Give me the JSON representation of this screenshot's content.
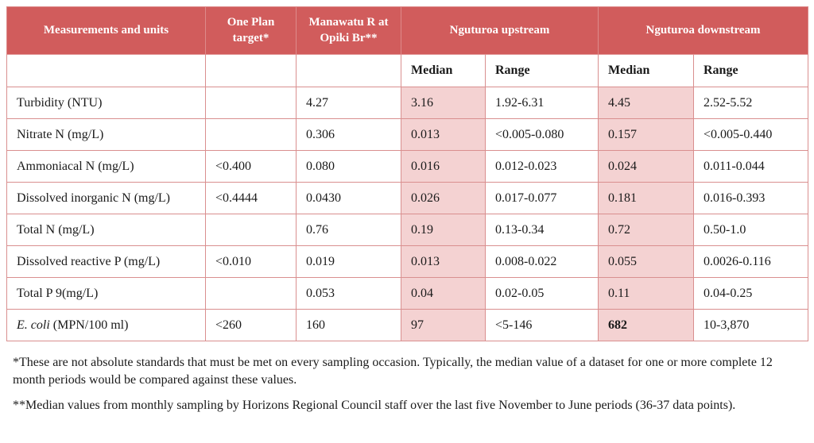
{
  "table": {
    "header": {
      "measurements": "Measurements and units",
      "one_plan": "One Plan target*",
      "manawatu": "Manawatu R at Opiki Br**",
      "upstream": "Nguturoa upstream",
      "downstream": "Nguturoa downstream"
    },
    "subheader": {
      "median_up": "Median",
      "range_up": "Range",
      "median_down": "Median",
      "range_down": "Range"
    },
    "rows": [
      {
        "name": "Turbidity (NTU)",
        "one_plan": "",
        "manawatu": "4.27",
        "up_median": "3.16",
        "up_range": "1.92-6.31",
        "down_median": "4.45",
        "down_range": "2.52-5.52"
      },
      {
        "name": "Nitrate N (mg/L)",
        "one_plan": "",
        "manawatu": "0.306",
        "up_median": "0.013",
        "up_range": "<0.005-0.080",
        "down_median": "0.157",
        "down_range": "<0.005-0.440"
      },
      {
        "name": "Ammoniacal N (mg/L)",
        "one_plan": "<0.400",
        "manawatu": "0.080",
        "up_median": "0.016",
        "up_range": "0.012-0.023",
        "down_median": "0.024",
        "down_range": "0.011-0.044"
      },
      {
        "name": "Dissolved inorganic N (mg/L)",
        "one_plan": "<0.4444",
        "manawatu": "0.0430",
        "up_median": "0.026",
        "up_range": "0.017-0.077",
        "down_median": "0.181",
        "down_range": "0.016-0.393"
      },
      {
        "name": "Total N (mg/L)",
        "one_plan": "",
        "manawatu": "0.76",
        "up_median": "0.19",
        "up_range": "0.13-0.34",
        "down_median": "0.72",
        "down_range": "0.50-1.0"
      },
      {
        "name": "Dissolved reactive P (mg/L)",
        "one_plan": "<0.010",
        "manawatu": "0.019",
        "up_median": "0.013",
        "up_range": "0.008-0.022",
        "down_median": "0.055",
        "down_range": "0.0026-0.116"
      },
      {
        "name": "Total P 9(mg/L)",
        "one_plan": "",
        "manawatu": "0.053",
        "up_median": "0.04",
        "up_range": "0.02-0.05",
        "down_median": "0.11",
        "down_range": "0.04-0.25"
      },
      {
        "name_italic": "E. coli",
        "name_rest": " (MPN/100 ml)",
        "one_plan": "<260",
        "manawatu": "160",
        "up_median": "97",
        "up_range": "<5-146",
        "down_median": "682",
        "down_range": "10-3,870"
      }
    ]
  },
  "footnotes": {
    "note1": "*These are not absolute standards that must be met on every sampling occasion. Typically, the median value of a dataset for one or more complete 12 month periods would be compared against these values.",
    "note2": "**Median values from monthly sampling by Horizons Regional Council staff over the last five November to June periods (36-37 data points)."
  },
  "colors": {
    "header_bg": "#d15c5c",
    "median_bg": "#f4d2d2",
    "border": "#d98f8f"
  }
}
